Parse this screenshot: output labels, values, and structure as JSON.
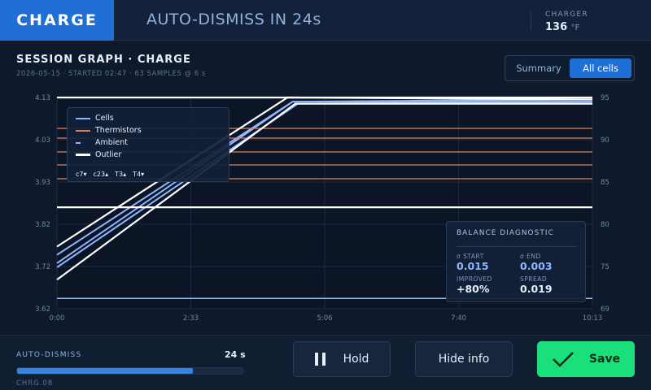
{
  "header": {
    "mode": "CHARGE",
    "autodismiss_title": "AUTO-DISMISS IN 24s",
    "charger_label": "CHARGER",
    "charger_temp": "136",
    "charger_temp_unit": "°F"
  },
  "graph": {
    "title": "SESSION GRAPH · CHARGE",
    "subtitle": "2026-05-15 · STARTED 02:47 · 63 SAMPLES @ 6 s",
    "view_tabs": [
      "Summary",
      "All cells"
    ],
    "active_view": "All cells"
  },
  "legend": {
    "items": [
      "Cells",
      "Thermistors",
      "Ambient",
      "Outlier"
    ],
    "tags": [
      "c7▾",
      "c23▴",
      "T3▴",
      "T4▾"
    ]
  },
  "diagnostic": {
    "title": "BALANCE DIAGNOSTIC",
    "start_label": "σ START",
    "start_value": "0.015",
    "end_label": "σ END",
    "end_value": "0.003",
    "improved_label": "IMPROVED",
    "improved_value": "+80%",
    "spread_label": "SPREAD",
    "spread_value": "0.019"
  },
  "footer": {
    "autodismiss_label": "AUTO-DISMISS",
    "autodismiss_seconds": "24 s",
    "autodismiss_progress": 0.78,
    "device_id": "CHRG.08",
    "hold_label": "Hold",
    "hide_info_label": "Hide info",
    "save_label": "Save"
  },
  "colors": {
    "accent": "#1f6fd6",
    "save": "#19e07a",
    "cells": "#8fb6ff",
    "thermistors": "#d9825f",
    "ambient": "#8fb6ff",
    "outlier": "#ffffff"
  },
  "chart_data": {
    "type": "line",
    "x_ticks": [
      "0:00",
      "2:33",
      "5:06",
      "7:40",
      "10:13"
    ],
    "y_left_ticks": [
      "4.13",
      "4.03",
      "3.93",
      "3.82",
      "3.72",
      "3.62"
    ],
    "y_right_ticks": [
      "95",
      "90",
      "85",
      "80",
      "75",
      "69"
    ],
    "ylim_left": [
      3.62,
      4.13
    ],
    "ylim_right": [
      69,
      95
    ],
    "grid": true,
    "series": [
      {
        "name": "Cells",
        "axis": "left",
        "points": [
          [
            0,
            3.73
          ],
          [
            4.5,
            4.12
          ],
          [
            10.22,
            4.12
          ]
        ]
      },
      {
        "name": "Cells",
        "axis": "left",
        "points": [
          [
            0,
            3.75
          ],
          [
            4.5,
            4.12
          ],
          [
            10.22,
            4.125
          ]
        ]
      },
      {
        "name": "Cells",
        "axis": "left",
        "points": [
          [
            0,
            3.72
          ],
          [
            4.6,
            4.115
          ],
          [
            10.22,
            4.12
          ]
        ]
      },
      {
        "name": "Thermistors",
        "axis": "right",
        "points": [
          [
            0,
            91.2
          ],
          [
            10.22,
            91.2
          ]
        ]
      },
      {
        "name": "Thermistors",
        "axis": "right",
        "points": [
          [
            0,
            90.0
          ],
          [
            10.22,
            90.0
          ]
        ]
      },
      {
        "name": "Thermistors",
        "axis": "right",
        "points": [
          [
            0,
            88.3
          ],
          [
            10.22,
            88.3
          ]
        ]
      },
      {
        "name": "Thermistors",
        "axis": "right",
        "points": [
          [
            0,
            86.7
          ],
          [
            10.22,
            86.7
          ]
        ]
      },
      {
        "name": "Thermistors",
        "axis": "right",
        "points": [
          [
            0,
            85.0
          ],
          [
            10.22,
            85.0
          ]
        ]
      },
      {
        "name": "Ambient",
        "axis": "left",
        "points": [
          [
            0,
            3.645
          ],
          [
            10.22,
            3.645
          ]
        ]
      },
      {
        "name": "Outlier",
        "axis": "left",
        "points": [
          [
            0,
            3.69
          ],
          [
            4.55,
            4.115
          ],
          [
            10.22,
            4.115
          ]
        ]
      },
      {
        "name": "Outlier",
        "axis": "left",
        "points": [
          [
            0,
            3.77
          ],
          [
            4.4,
            4.13
          ],
          [
            10.22,
            4.125
          ]
        ]
      },
      {
        "name": "Outlier",
        "axis": "left",
        "points": [
          [
            0,
            4.13
          ],
          [
            10.22,
            4.13
          ]
        ]
      },
      {
        "name": "Outlier",
        "axis": "left",
        "points": [
          [
            0,
            3.865
          ],
          [
            10.22,
            3.865
          ]
        ]
      }
    ]
  }
}
